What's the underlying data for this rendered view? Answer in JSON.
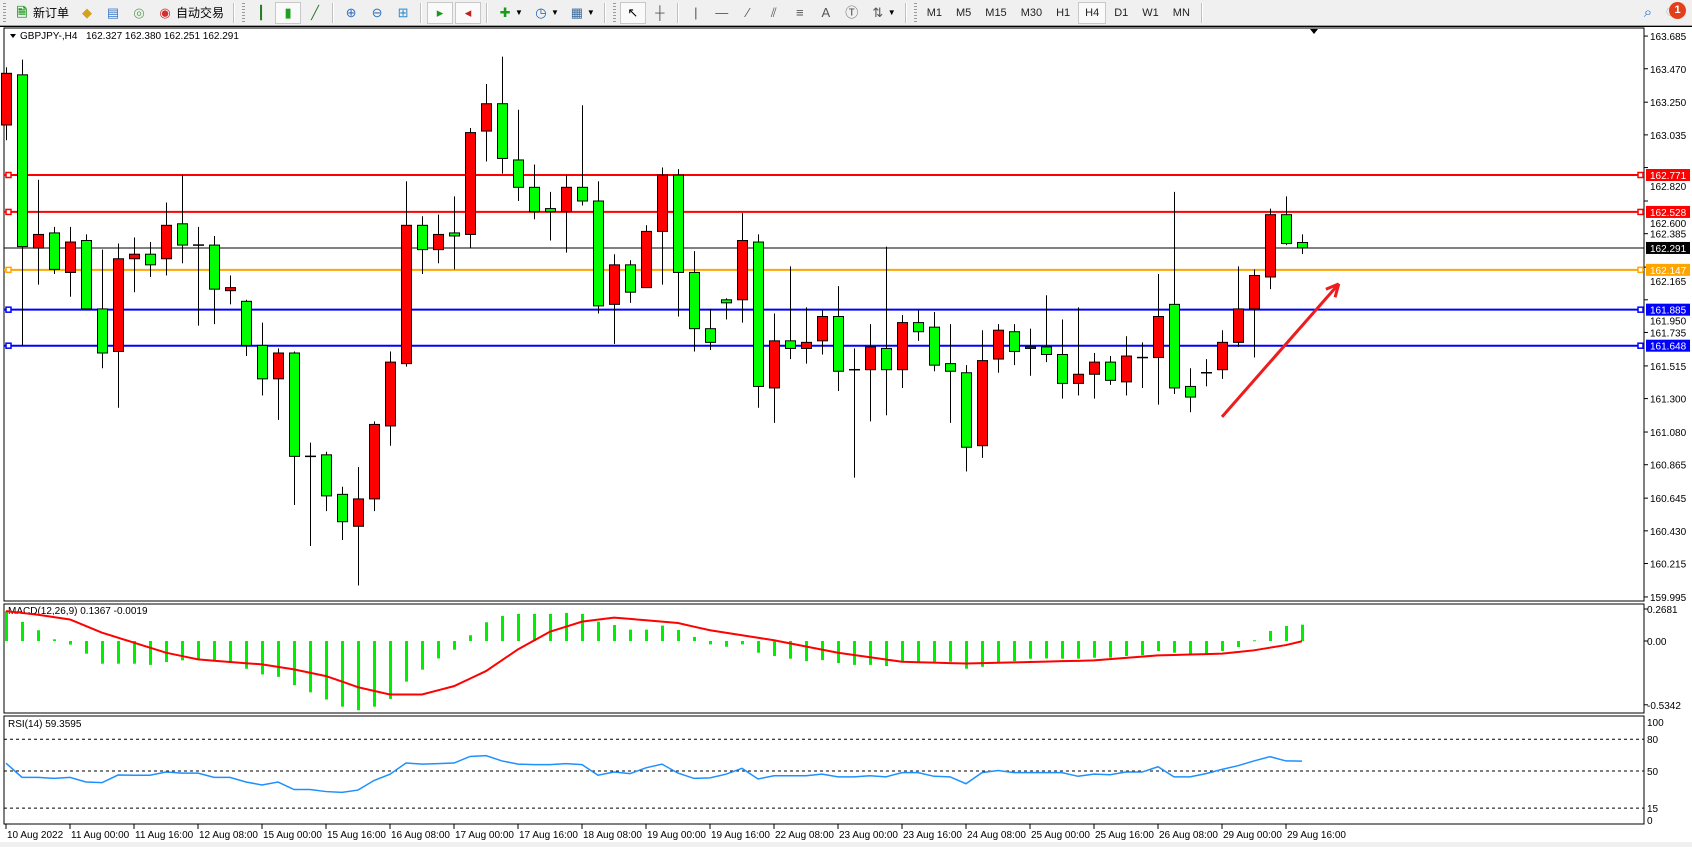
{
  "toolbar": {
    "new_order_label": "新订单",
    "auto_trading_label": "自动交易",
    "timeframes": [
      "M1",
      "M5",
      "M15",
      "M30",
      "H1",
      "H4",
      "D1",
      "W1",
      "MN"
    ],
    "active_timeframe": "H4",
    "notification_count": "1"
  },
  "chart_header": {
    "symbol_label": "GBPJPY-,H4",
    "ohlc_label": "162.327 162.380 162.251 162.291"
  },
  "colors": {
    "bull_candle": "#ff0000",
    "bear_candle": "#00ff00",
    "macd_histogram": "#00ee00",
    "macd_signal": "#ff0000",
    "rsi_line": "#1e90ff",
    "arrow": "#ee1c1c"
  },
  "chart_data": [
    {
      "type": "candlestick",
      "title": "GBPJPY-,H4",
      "ylim": [
        159.995,
        163.685
      ],
      "y_ticks": [
        "163.685",
        "163.470",
        "163.250",
        "163.035",
        "162.820",
        "162.600",
        "162.385",
        "162.165",
        "161.950",
        "161.735",
        "161.515",
        "161.300",
        "161.080",
        "160.865",
        "160.645",
        "160.430",
        "160.215",
        "159.995"
      ],
      "x_labels": [
        "10 Aug 2022",
        "11 Aug 00:00",
        "11 Aug 16:00",
        "12 Aug 08:00",
        "15 Aug 00:00",
        "15 Aug 16:00",
        "16 Aug 08:00",
        "17 Aug 00:00",
        "17 Aug 16:00",
        "18 Aug 08:00",
        "19 Aug 00:00",
        "19 Aug 16:00",
        "22 Aug 08:00",
        "23 Aug 00:00",
        "23 Aug 16:00",
        "24 Aug 08:00",
        "25 Aug 00:00",
        "25 Aug 16:00",
        "26 Aug 08:00",
        "29 Aug 00:00",
        "29 Aug 16:00"
      ],
      "ohlc_fields": [
        "open",
        "high",
        "low",
        "close"
      ],
      "candles": [
        [
          163.1,
          163.48,
          163.0,
          163.44
        ],
        [
          163.43,
          163.53,
          161.65,
          162.3
        ],
        [
          162.29,
          162.74,
          162.05,
          162.38
        ],
        [
          162.39,
          162.43,
          162.12,
          162.15
        ],
        [
          162.13,
          162.43,
          161.97,
          162.33
        ],
        [
          162.34,
          162.38,
          161.89,
          161.89
        ],
        [
          161.89,
          162.28,
          161.5,
          161.6
        ],
        [
          161.61,
          162.32,
          161.24,
          162.22
        ],
        [
          162.22,
          162.36,
          162.0,
          162.25
        ],
        [
          162.25,
          162.33,
          162.1,
          162.18
        ],
        [
          162.22,
          162.59,
          162.11,
          162.44
        ],
        [
          162.45,
          162.77,
          162.19,
          162.31
        ],
        [
          162.31,
          162.43,
          161.78,
          162.31
        ],
        [
          162.31,
          162.37,
          161.79,
          162.02
        ],
        [
          162.01,
          162.11,
          161.92,
          162.03
        ],
        [
          161.94,
          161.95,
          161.58,
          161.65
        ],
        [
          161.65,
          161.8,
          161.32,
          161.43
        ],
        [
          161.43,
          161.63,
          161.16,
          161.6
        ],
        [
          161.6,
          161.61,
          160.6,
          160.92
        ],
        [
          160.92,
          161.01,
          160.33,
          160.92
        ],
        [
          160.93,
          160.95,
          160.56,
          160.66
        ],
        [
          160.67,
          160.72,
          160.37,
          160.49
        ],
        [
          160.46,
          160.85,
          160.07,
          160.64
        ],
        [
          160.64,
          161.15,
          160.56,
          161.13
        ],
        [
          161.12,
          161.61,
          160.99,
          161.54
        ],
        [
          161.53,
          162.73,
          161.51,
          162.44
        ],
        [
          162.44,
          162.5,
          162.12,
          162.28
        ],
        [
          162.28,
          162.51,
          162.19,
          162.38
        ],
        [
          162.39,
          162.63,
          162.15,
          162.37
        ],
        [
          162.38,
          163.08,
          162.29,
          163.05
        ],
        [
          163.06,
          163.37,
          162.86,
          163.24
        ],
        [
          163.24,
          163.55,
          162.78,
          162.88
        ],
        [
          162.87,
          163.2,
          162.6,
          162.69
        ],
        [
          162.69,
          162.84,
          162.48,
          162.53
        ],
        [
          162.55,
          162.66,
          162.34,
          162.53
        ],
        [
          162.53,
          162.77,
          162.26,
          162.69
        ],
        [
          162.69,
          163.23,
          162.57,
          162.6
        ],
        [
          162.6,
          162.73,
          161.86,
          161.91
        ],
        [
          161.92,
          162.25,
          161.66,
          162.18
        ],
        [
          162.18,
          162.21,
          161.93,
          162.0
        ],
        [
          162.03,
          162.44,
          162.03,
          162.4
        ],
        [
          162.4,
          162.82,
          162.05,
          162.77
        ],
        [
          162.77,
          162.81,
          161.84,
          162.13
        ],
        [
          162.13,
          162.27,
          161.61,
          161.76
        ],
        [
          161.76,
          161.89,
          161.62,
          161.67
        ],
        [
          161.95,
          161.96,
          161.82,
          161.93
        ],
        [
          161.95,
          162.52,
          161.8,
          162.34
        ],
        [
          162.33,
          162.38,
          161.24,
          161.38
        ],
        [
          161.37,
          161.86,
          161.14,
          161.68
        ],
        [
          161.68,
          162.17,
          161.56,
          161.63
        ],
        [
          161.63,
          161.9,
          161.53,
          161.67
        ],
        [
          161.68,
          161.88,
          161.59,
          161.84
        ],
        [
          161.84,
          162.04,
          161.35,
          161.48
        ],
        [
          161.49,
          161.63,
          160.78,
          161.49
        ],
        [
          161.49,
          161.79,
          161.15,
          161.64
        ],
        [
          161.63,
          162.3,
          161.19,
          161.49
        ],
        [
          161.49,
          161.85,
          161.37,
          161.8
        ],
        [
          161.8,
          161.88,
          161.68,
          161.74
        ],
        [
          161.77,
          161.87,
          161.48,
          161.52
        ],
        [
          161.53,
          161.79,
          161.14,
          161.48
        ],
        [
          161.47,
          161.52,
          160.82,
          160.98
        ],
        [
          160.99,
          161.75,
          160.91,
          161.55
        ],
        [
          161.56,
          161.79,
          161.47,
          161.75
        ],
        [
          161.74,
          161.79,
          161.52,
          161.61
        ],
        [
          161.63,
          161.76,
          161.45,
          161.64
        ],
        [
          161.64,
          161.98,
          161.54,
          161.59
        ],
        [
          161.59,
          161.82,
          161.3,
          161.4
        ],
        [
          161.4,
          161.9,
          161.32,
          161.46
        ],
        [
          161.46,
          161.6,
          161.3,
          161.54
        ],
        [
          161.54,
          161.58,
          161.39,
          161.42
        ],
        [
          161.41,
          161.71,
          161.32,
          161.58
        ],
        [
          161.57,
          161.67,
          161.37,
          161.57
        ],
        [
          161.57,
          162.12,
          161.26,
          161.84
        ],
        [
          161.92,
          162.66,
          161.33,
          161.37
        ],
        [
          161.38,
          161.5,
          161.21,
          161.31
        ],
        [
          161.47,
          161.56,
          161.38,
          161.47
        ],
        [
          161.49,
          161.75,
          161.43,
          161.67
        ],
        [
          161.67,
          162.17,
          161.64,
          161.89
        ],
        [
          161.89,
          162.15,
          161.57,
          162.11
        ],
        [
          162.1,
          162.55,
          162.02,
          162.51
        ],
        [
          162.51,
          162.63,
          162.31,
          162.32
        ],
        [
          162.327,
          162.38,
          162.251,
          162.291
        ]
      ],
      "horizontal_levels": [
        {
          "price": 162.771,
          "label": "162.771",
          "color": "#ff0000"
        },
        {
          "price": 162.528,
          "label": "162.528",
          "color": "#ff0000"
        },
        {
          "price": 162.147,
          "label": "162.147",
          "color": "#ffa500"
        },
        {
          "price": 161.885,
          "label": "161.885",
          "color": "#0000ff"
        },
        {
          "price": 161.648,
          "label": "161.648",
          "color": "#0000ff"
        }
      ],
      "current_price": {
        "price": 162.291,
        "label": "162.291",
        "color": "#000000"
      },
      "annotation": {
        "type": "arrow",
        "direction": "up-right",
        "from": {
          "bar": 76,
          "price": 161.18
        },
        "to": {
          "bar": 83.3,
          "price": 162.055
        }
      }
    },
    {
      "type": "bar+line",
      "title": "MACD(12,26,9) 0.1367 -0.0019",
      "ylim": [
        -0.5342,
        0.2681
      ],
      "y_ticks": [
        "0.2681",
        "0.00",
        "-0.5342"
      ],
      "histogram": [
        0.25,
        0.16,
        0.09,
        0.014,
        -0.03,
        -0.106,
        -0.19,
        -0.19,
        -0.19,
        -0.2,
        -0.176,
        -0.162,
        -0.154,
        -0.168,
        -0.182,
        -0.232,
        -0.28,
        -0.3,
        -0.37,
        -0.43,
        -0.49,
        -0.55,
        -0.58,
        -0.55,
        -0.485,
        -0.34,
        -0.24,
        -0.146,
        -0.073,
        0.048,
        0.157,
        0.21,
        0.227,
        0.227,
        0.227,
        0.235,
        0.227,
        0.162,
        0.134,
        0.095,
        0.095,
        0.129,
        0.092,
        0.034,
        -0.028,
        -0.048,
        -0.028,
        -0.098,
        -0.126,
        -0.148,
        -0.168,
        -0.16,
        -0.185,
        -0.2,
        -0.2,
        -0.21,
        -0.174,
        -0.174,
        -0.174,
        -0.174,
        -0.232,
        -0.216,
        -0.188,
        -0.168,
        -0.148,
        -0.146,
        -0.148,
        -0.148,
        -0.14,
        -0.14,
        -0.126,
        -0.118,
        -0.084,
        -0.098,
        -0.106,
        -0.106,
        -0.084,
        -0.05,
        0.006,
        0.084,
        0.126,
        0.1367
      ],
      "signal": [
        0.25,
        0.235,
        0.22,
        0.2,
        0.18,
        0.125,
        0.07,
        0.028,
        -0.014,
        -0.056,
        -0.098,
        -0.126,
        -0.154,
        -0.165,
        -0.176,
        -0.186,
        -0.196,
        -0.217,
        -0.238,
        -0.266,
        -0.294,
        -0.34,
        -0.387,
        -0.418,
        -0.448,
        -0.448,
        -0.448,
        -0.413,
        -0.378,
        -0.315,
        -0.252,
        -0.161,
        -0.07,
        0.004,
        0.078,
        0.12,
        0.162,
        0.179,
        0.196,
        0.185,
        0.174,
        0.162,
        0.151,
        0.12,
        0.09,
        0.069,
        0.048,
        0.027,
        0.006,
        -0.02,
        -0.046,
        -0.072,
        -0.098,
        -0.117,
        -0.136,
        -0.155,
        -0.174,
        -0.178,
        -0.181,
        -0.185,
        -0.188,
        -0.185,
        -0.182,
        -0.179,
        -0.176,
        -0.173,
        -0.169,
        -0.166,
        -0.162,
        -0.152,
        -0.141,
        -0.131,
        -0.12,
        -0.117,
        -0.113,
        -0.11,
        -0.106,
        -0.092,
        -0.078,
        -0.056,
        -0.034,
        -0.0019
      ]
    },
    {
      "type": "line",
      "title": "RSI(14) 59.3595",
      "ylim": [
        0,
        100
      ],
      "y_ticks": [
        "100",
        "80",
        "50",
        "15",
        "0"
      ],
      "levels": [
        80,
        50,
        15
      ],
      "values": [
        57.4,
        44,
        44,
        43,
        44,
        39.6,
        39,
        46.2,
        46,
        46,
        49,
        48,
        48,
        44,
        44,
        39.6,
        36.8,
        39.6,
        32.5,
        32.5,
        30.6,
        29.8,
        32,
        41,
        47,
        57.5,
        56.5,
        57,
        57.5,
        63.7,
        64.5,
        59.5,
        56.5,
        56,
        56,
        57,
        56,
        46,
        49,
        47.5,
        53,
        56.5,
        48,
        43,
        43.5,
        47,
        52.5,
        42.5,
        45.5,
        45.5,
        45.5,
        47,
        44.5,
        44.5,
        45.5,
        44.5,
        48.5,
        48.5,
        45,
        44.5,
        38,
        48.5,
        50.5,
        48.5,
        48.5,
        48.5,
        48.5,
        45,
        47,
        46.5,
        49,
        49,
        54,
        44.5,
        44.5,
        47.5,
        51.5,
        55,
        59.5,
        63.5,
        59.5,
        59.3595
      ]
    }
  ]
}
